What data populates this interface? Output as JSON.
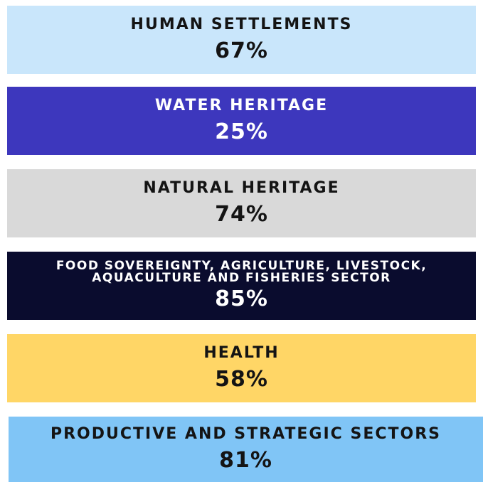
{
  "items": [
    {
      "label": "HUMAN SETTLEMENTS",
      "value": "67%"
    },
    {
      "label": "WATER HERITAGE",
      "value": "25%"
    },
    {
      "label": "NATURAL HERITAGE",
      "value": "74%"
    },
    {
      "label": "FOOD SOVEREIGNTY, AGRICULTURE, LIVESTOCK, AQUACULTURE AND FISHERIES SECTOR",
      "value": "85%"
    },
    {
      "label": "HEALTH",
      "value": "58%"
    },
    {
      "label": "PRODUCTIVE AND STRATEGIC SECTORS",
      "value": "81%"
    }
  ]
}
